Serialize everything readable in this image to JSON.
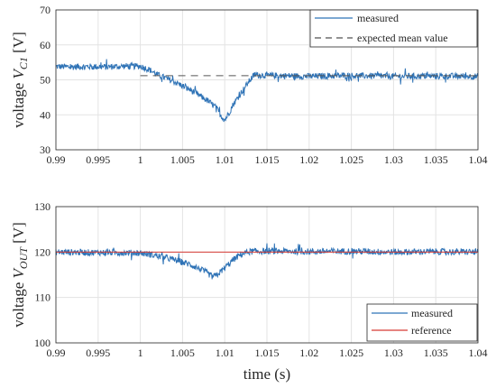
{
  "xlabel": "time (s)",
  "colors": {
    "measured": "#2f73b6",
    "reference": "#d63a34",
    "expected": "#555555",
    "grid": "#e3e3e3"
  },
  "chart_data": [
    {
      "type": "line",
      "title": "",
      "ylabel_prefix": "voltage ",
      "ylabel_var": "V",
      "ylabel_sub": "C1",
      "ylabel_unit": " [V]",
      "xlim": [
        0.99,
        1.04
      ],
      "ylim": [
        30,
        70
      ],
      "grid": true,
      "x_ticks": [
        "0.99",
        "0.995",
        "1",
        "1.005",
        "1.01",
        "1.015",
        "1.02",
        "1.025",
        "1.03",
        "1.035",
        "1.04"
      ],
      "y_ticks": [
        "30",
        "40",
        "50",
        "60",
        "70"
      ],
      "legend_position": "top-right",
      "series": [
        {
          "name": "measured",
          "style": "solid",
          "x": [
            0.99,
            0.992,
            0.994,
            0.996,
            0.998,
            1.0,
            1.001,
            1.002,
            1.004,
            1.006,
            1.008,
            1.009,
            1.0095,
            1.01,
            1.0105,
            1.011,
            1.012,
            1.013,
            1.0135,
            1.015,
            1.02,
            1.025,
            1.03,
            1.035,
            1.04
          ],
          "y": [
            53.8,
            53.7,
            53.8,
            53.7,
            53.9,
            53.9,
            53.0,
            51.5,
            49.5,
            47.0,
            44.0,
            42.0,
            40.0,
            38.5,
            40.5,
            43.0,
            46.5,
            50.0,
            51.4,
            51.3,
            51.0,
            51.2,
            51.0,
            51.1,
            51.0
          ]
        },
        {
          "name": "expected mean value",
          "style": "dashed",
          "x": [
            1.0,
            1.04
          ],
          "y": [
            51.2,
            51.2
          ]
        }
      ]
    },
    {
      "type": "line",
      "title": "",
      "ylabel_prefix": "voltage ",
      "ylabel_var": "V",
      "ylabel_sub": "OUT",
      "ylabel_unit": " [V]",
      "xlim": [
        0.99,
        1.04
      ],
      "ylim": [
        100,
        130
      ],
      "grid": true,
      "x_ticks": [
        "0.99",
        "0.995",
        "1",
        "1.005",
        "1.01",
        "1.015",
        "1.02",
        "1.025",
        "1.03",
        "1.035",
        "1.04"
      ],
      "y_ticks": [
        "100",
        "110",
        "120",
        "130"
      ],
      "legend_position": "bottom-right",
      "series": [
        {
          "name": "measured",
          "style": "solid",
          "x": [
            0.99,
            0.995,
            1.0,
            1.002,
            1.004,
            1.006,
            1.007,
            1.008,
            1.0085,
            1.009,
            1.01,
            1.011,
            1.012,
            1.013,
            1.015,
            1.02,
            1.025,
            1.03,
            1.035,
            1.04
          ],
          "y": [
            120.0,
            119.9,
            119.8,
            119.2,
            118.3,
            117.2,
            116.3,
            115.3,
            114.6,
            114.8,
            116.5,
            118.3,
            119.6,
            120.1,
            120.2,
            120.1,
            120.2,
            120.0,
            120.1,
            120.0
          ]
        },
        {
          "name": "reference",
          "style": "solid",
          "x": [
            0.99,
            1.04
          ],
          "y": [
            120,
            120
          ]
        }
      ]
    }
  ]
}
